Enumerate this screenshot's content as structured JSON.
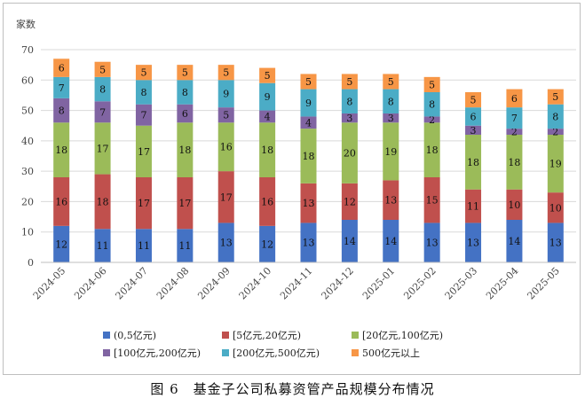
{
  "caption": "图 6　基金子公司私募资管产品规模分布情况",
  "chart_data": {
    "type": "bar",
    "stacked": true,
    "ylabel": "家数",
    "ylim": [
      0,
      70
    ],
    "yticks": [
      0,
      10,
      20,
      30,
      40,
      50,
      60,
      70
    ],
    "grid": true,
    "legend_position": "bottom",
    "categories": [
      "2024-05",
      "2024-06",
      "2024-07",
      "2024-08",
      "2024-09",
      "2024-10",
      "2024-11",
      "2024-12",
      "2025-01",
      "2025-02",
      "2025-03",
      "2025-04",
      "2025-05"
    ],
    "series": [
      {
        "name": "(0,5亿元)",
        "color": "#4472c4",
        "values": [
          12,
          11,
          11,
          11,
          13,
          12,
          13,
          14,
          14,
          13,
          13,
          14,
          13
        ]
      },
      {
        "name": "[5亿元,20亿元)",
        "color": "#c0504d",
        "values": [
          16,
          18,
          17,
          17,
          17,
          16,
          13,
          12,
          13,
          15,
          11,
          10,
          10
        ]
      },
      {
        "name": "[20亿元,100亿元)",
        "color": "#9bbb59",
        "values": [
          18,
          17,
          17,
          18,
          16,
          18,
          18,
          20,
          19,
          18,
          18,
          18,
          19
        ]
      },
      {
        "name": "[100亿元,200亿元)",
        "color": "#8064a2",
        "values": [
          8,
          7,
          7,
          6,
          5,
          4,
          4,
          3,
          3,
          2,
          3,
          2,
          2
        ]
      },
      {
        "name": "[200亿元,500亿元)",
        "color": "#4bacc6",
        "values": [
          7,
          8,
          8,
          8,
          9,
          9,
          9,
          8,
          8,
          8,
          6,
          7,
          8
        ]
      },
      {
        "name": "500亿元以上",
        "color": "#f79646",
        "values": [
          6,
          5,
          5,
          5,
          5,
          5,
          5,
          5,
          5,
          5,
          5,
          6,
          5
        ]
      }
    ]
  }
}
